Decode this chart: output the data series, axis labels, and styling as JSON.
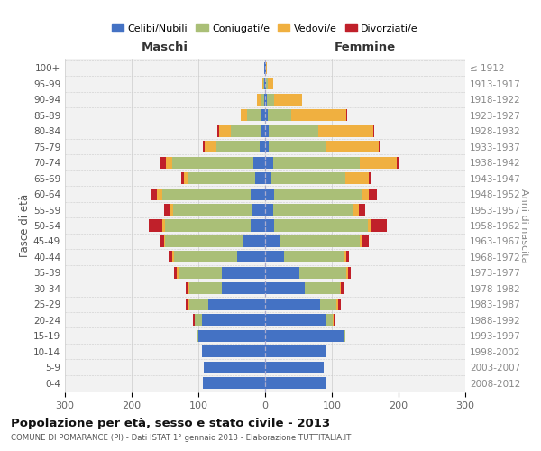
{
  "age_groups": [
    "0-4",
    "5-9",
    "10-14",
    "15-19",
    "20-24",
    "25-29",
    "30-34",
    "35-39",
    "40-44",
    "45-49",
    "50-54",
    "55-59",
    "60-64",
    "65-69",
    "70-74",
    "75-79",
    "80-84",
    "85-89",
    "90-94",
    "95-99",
    "100+"
  ],
  "birth_years": [
    "2008-2012",
    "2003-2007",
    "1998-2002",
    "1993-1997",
    "1988-1992",
    "1983-1987",
    "1978-1982",
    "1973-1977",
    "1968-1972",
    "1963-1967",
    "1958-1962",
    "1953-1957",
    "1948-1952",
    "1943-1947",
    "1938-1942",
    "1933-1937",
    "1928-1932",
    "1923-1927",
    "1918-1922",
    "1913-1917",
    "≤ 1912"
  ],
  "maschi": {
    "celibi": [
      93,
      92,
      95,
      100,
      95,
      85,
      65,
      65,
      42,
      32,
      22,
      20,
      22,
      15,
      17,
      8,
      6,
      5,
      2,
      2,
      1
    ],
    "coniugati": [
      0,
      0,
      0,
      2,
      10,
      28,
      48,
      65,
      95,
      118,
      128,
      118,
      132,
      100,
      122,
      65,
      45,
      22,
      5,
      1,
      0
    ],
    "vedovi": [
      0,
      0,
      0,
      0,
      1,
      2,
      2,
      2,
      2,
      2,
      4,
      5,
      8,
      6,
      10,
      18,
      18,
      10,
      5,
      1,
      0
    ],
    "divorziati": [
      0,
      0,
      0,
      0,
      2,
      4,
      4,
      5,
      5,
      6,
      20,
      8,
      8,
      4,
      8,
      2,
      2,
      0,
      0,
      0,
      0
    ]
  },
  "femmine": {
    "nubili": [
      90,
      88,
      92,
      118,
      90,
      82,
      60,
      52,
      28,
      22,
      14,
      12,
      14,
      10,
      12,
      5,
      5,
      4,
      3,
      2,
      1
    ],
    "coniugate": [
      0,
      0,
      0,
      2,
      12,
      25,
      52,
      70,
      90,
      120,
      140,
      120,
      130,
      110,
      130,
      85,
      75,
      35,
      10,
      2,
      0
    ],
    "vedove": [
      0,
      0,
      0,
      0,
      1,
      2,
      2,
      2,
      3,
      4,
      6,
      8,
      12,
      35,
      55,
      80,
      82,
      82,
      42,
      8,
      2
    ],
    "divorziate": [
      0,
      0,
      0,
      0,
      2,
      4,
      5,
      4,
      5,
      10,
      22,
      10,
      12,
      3,
      4,
      2,
      2,
      2,
      0,
      0,
      0
    ]
  },
  "colors": {
    "celibi_nubili": "#4472C4",
    "coniugati": "#AABF77",
    "vedovi": "#F0B040",
    "divorziati": "#C0202A"
  },
  "xlim": 300,
  "title": "Popolazione per età, sesso e stato civile - 2013",
  "subtitle": "COMUNE DI POMARANCE (PI) - Dati ISTAT 1° gennaio 2013 - Elaborazione TUTTITALIA.IT",
  "ylabel_left": "Fasce di età",
  "ylabel_right": "Anni di nascita",
  "xlabel_left": "Maschi",
  "xlabel_right": "Femmine",
  "bg_color": "#f2f2f2",
  "grid_color": "#c8c8c8"
}
